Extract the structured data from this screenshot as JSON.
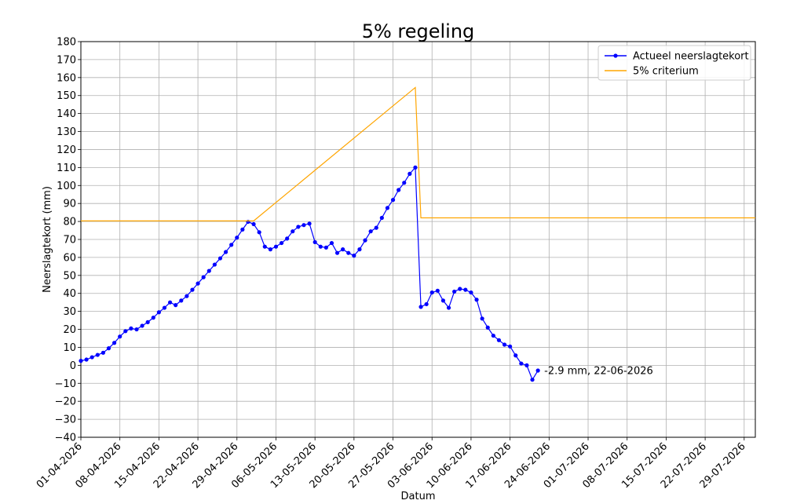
{
  "chart_data": {
    "type": "line",
    "title": "5% regeling",
    "xlabel": "Datum",
    "ylabel": "Neerslagtekort (mm)",
    "ylim": [
      -40,
      180
    ],
    "xlim": [
      "2026-04-01",
      "2026-07-31"
    ],
    "grid": true,
    "legend_position": "top-right",
    "yticks": [
      "−40",
      "−30",
      "−20",
      "−10",
      "0",
      "10",
      "20",
      "30",
      "40",
      "50",
      "60",
      "70",
      "80",
      "90",
      "100",
      "110",
      "120",
      "130",
      "140",
      "150",
      "160",
      "170",
      "180"
    ],
    "xtick_labels": [
      "01-04-2026",
      "08-04-2026",
      "15-04-2026",
      "22-04-2026",
      "29-04-2026",
      "06-05-2026",
      "13-05-2026",
      "20-05-2026",
      "27-05-2026",
      "03-06-2026",
      "10-06-2026",
      "17-06-2026",
      "24-06-2026",
      "01-07-2026",
      "08-07-2026",
      "15-07-2026",
      "22-07-2026",
      "29-07-2026"
    ],
    "series": [
      {
        "name": "Actueel neerslagtekort",
        "color": "#0000ff",
        "marker": "circle",
        "x": [
          "2026-04-01",
          "2026-04-02",
          "2026-04-03",
          "2026-04-04",
          "2026-04-05",
          "2026-04-06",
          "2026-04-07",
          "2026-04-08",
          "2026-04-09",
          "2026-04-10",
          "2026-04-11",
          "2026-04-12",
          "2026-04-13",
          "2026-04-14",
          "2026-04-15",
          "2026-04-16",
          "2026-04-17",
          "2026-04-18",
          "2026-04-19",
          "2026-04-20",
          "2026-04-21",
          "2026-04-22",
          "2026-04-23",
          "2026-04-24",
          "2026-04-25",
          "2026-04-26",
          "2026-04-27",
          "2026-04-28",
          "2026-04-29",
          "2026-04-30",
          "2026-05-01",
          "2026-05-02",
          "2026-05-03",
          "2026-05-04",
          "2026-05-05",
          "2026-05-06",
          "2026-05-07",
          "2026-05-08",
          "2026-05-09",
          "2026-05-10",
          "2026-05-11",
          "2026-05-12",
          "2026-05-13",
          "2026-05-14",
          "2026-05-15",
          "2026-05-16",
          "2026-05-17",
          "2026-05-18",
          "2026-05-19",
          "2026-05-20",
          "2026-05-21",
          "2026-05-22",
          "2026-05-23",
          "2026-05-24",
          "2026-05-25",
          "2026-05-26",
          "2026-05-27",
          "2026-05-28",
          "2026-05-29",
          "2026-05-30",
          "2026-05-31",
          "2026-06-01",
          "2026-06-02",
          "2026-06-03",
          "2026-06-04",
          "2026-06-05",
          "2026-06-06",
          "2026-06-07",
          "2026-06-08",
          "2026-06-09",
          "2026-06-10",
          "2026-06-11",
          "2026-06-12",
          "2026-06-13",
          "2026-06-14",
          "2026-06-15",
          "2026-06-16",
          "2026-06-17",
          "2026-06-18",
          "2026-06-19",
          "2026-06-20",
          "2026-06-21",
          "2026-06-22"
        ],
        "y": [
          2.5,
          3.2,
          4.5,
          5.8,
          7.0,
          9.5,
          12.5,
          16.0,
          19.0,
          20.5,
          20.0,
          22.0,
          24.0,
          26.5,
          29.5,
          32.0,
          35.0,
          33.5,
          36.0,
          38.5,
          42.0,
          45.5,
          49.0,
          52.5,
          56.0,
          59.5,
          63.0,
          67.0,
          71.0,
          75.5,
          79.8,
          78.5,
          74.0,
          66.0,
          64.5,
          66.0,
          68.0,
          70.5,
          74.5,
          77.0,
          78.0,
          78.8,
          68.5,
          66.0,
          65.5,
          68.0,
          62.5,
          64.5,
          62.5,
          61.0,
          64.5,
          69.5,
          74.5,
          76.5,
          82.0,
          87.5,
          92.0,
          97.5,
          101.5,
          106.5,
          110.0,
          32.5,
          34.0,
          40.5,
          41.5,
          36.0,
          32.0,
          41.0,
          42.5,
          42.0,
          40.5,
          36.5,
          26.0,
          21.0,
          16.5,
          14.0,
          11.5,
          10.5,
          5.5,
          1.0,
          0.0,
          -8.0,
          -2.9
        ]
      },
      {
        "name": "5% criterium",
        "color": "#ffa500",
        "marker": "none",
        "x": [
          "2026-04-01",
          "2026-05-02",
          "2026-05-31",
          "2026-06-01",
          "2026-07-31"
        ],
        "y": [
          80.3,
          80.3,
          154.5,
          82.0,
          82.0
        ]
      }
    ],
    "annotations": [
      {
        "text": "-2.9 mm, 22-06-2026",
        "x": "2026-06-22",
        "y": -2.9
      }
    ]
  }
}
